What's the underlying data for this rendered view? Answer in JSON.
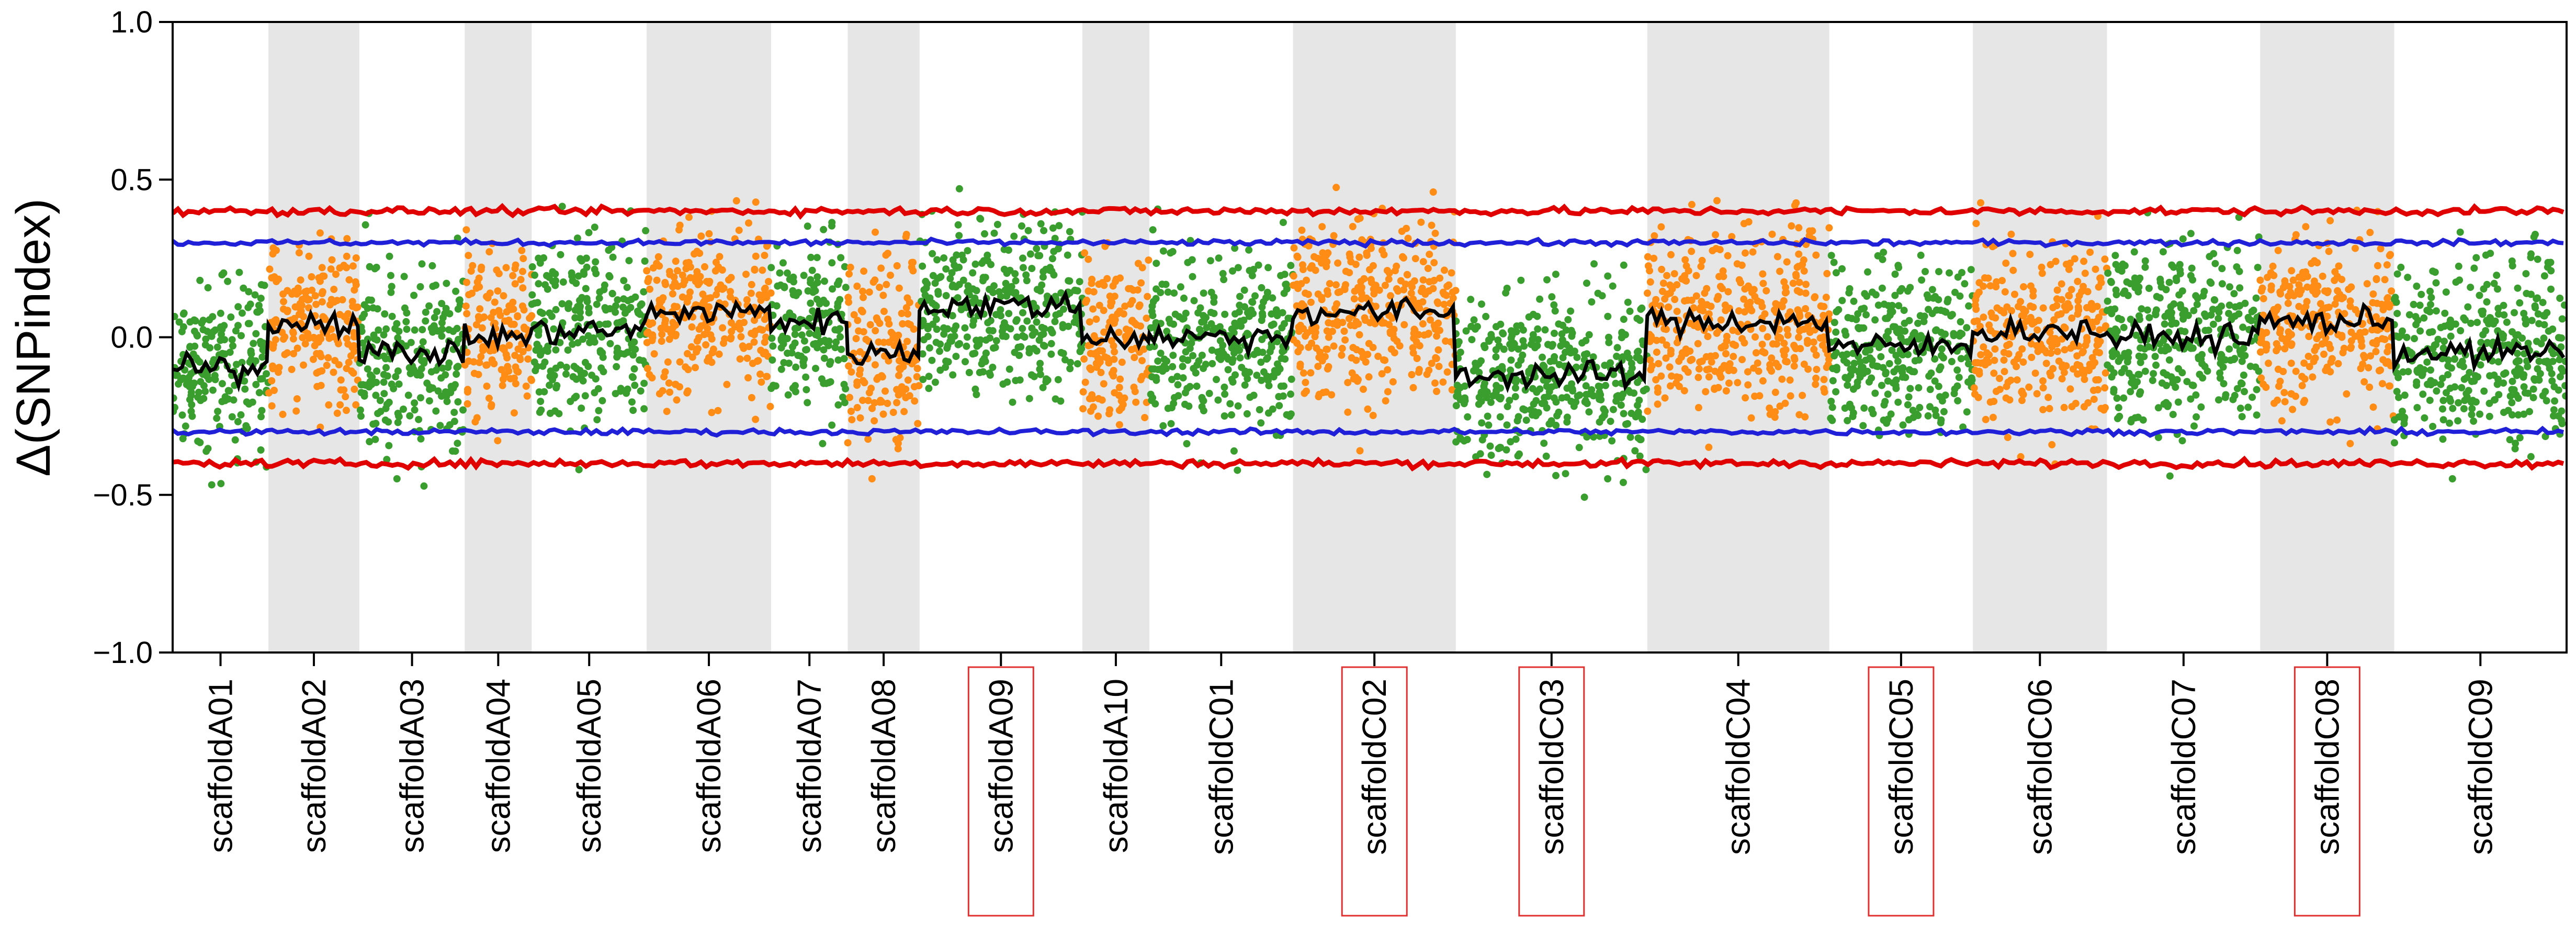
{
  "chart_data": {
    "type": "scatter",
    "title": "",
    "ylabel": "Δ(SNPindex)",
    "xlabel": "",
    "ylim": [
      -1.0,
      1.0
    ],
    "yticks": [
      {
        "value": 1.0,
        "label": "1.0"
      },
      {
        "value": 0.5,
        "label": "0.5"
      },
      {
        "value": 0.0,
        "label": "0.0"
      },
      {
        "value": -0.5,
        "label": "−0.5"
      },
      {
        "value": -1.0,
        "label": "−1.0"
      }
    ],
    "grid": false,
    "legend": "none",
    "colors": {
      "green": "#3a9e2f",
      "orange": "#ff8c14",
      "black": "#000000",
      "blue": "#2020d8",
      "red": "#e00000",
      "band": "#e6e6e6",
      "highlight_box": "#e03030"
    },
    "scaffolds": [
      {
        "name": "scaffoldA01",
        "size": 1.0,
        "dot_color": "green",
        "band": false,
        "highlight": false,
        "mean": -0.1
      },
      {
        "name": "scaffoldA02",
        "size": 0.95,
        "dot_color": "orange",
        "band": true,
        "highlight": false,
        "mean": 0.05
      },
      {
        "name": "scaffoldA03",
        "size": 1.1,
        "dot_color": "green",
        "band": false,
        "highlight": false,
        "mean": -0.05
      },
      {
        "name": "scaffoldA04",
        "size": 0.7,
        "dot_color": "orange",
        "band": true,
        "highlight": false,
        "mean": 0.0
      },
      {
        "name": "scaffoldA05",
        "size": 1.2,
        "dot_color": "green",
        "band": false,
        "highlight": false,
        "mean": 0.02
      },
      {
        "name": "scaffoldA06",
        "size": 1.3,
        "dot_color": "orange",
        "band": true,
        "highlight": false,
        "mean": 0.08
      },
      {
        "name": "scaffoldA07",
        "size": 0.8,
        "dot_color": "green",
        "band": false,
        "highlight": false,
        "mean": 0.05
      },
      {
        "name": "scaffoldA08",
        "size": 0.75,
        "dot_color": "orange",
        "band": true,
        "highlight": false,
        "mean": -0.05
      },
      {
        "name": "scaffoldA09",
        "size": 1.7,
        "dot_color": "green",
        "band": false,
        "highlight": true,
        "mean": 0.1
      },
      {
        "name": "scaffoldA10",
        "size": 0.7,
        "dot_color": "orange",
        "band": true,
        "highlight": false,
        "mean": 0.0
      },
      {
        "name": "scaffoldC01",
        "size": 1.5,
        "dot_color": "green",
        "band": false,
        "highlight": false,
        "mean": 0.0
      },
      {
        "name": "scaffoldC02",
        "size": 1.7,
        "dot_color": "orange",
        "band": true,
        "highlight": true,
        "mean": 0.08
      },
      {
        "name": "scaffoldC03",
        "size": 2.0,
        "dot_color": "green",
        "band": false,
        "highlight": true,
        "mean": -0.12
      },
      {
        "name": "scaffoldC04",
        "size": 1.9,
        "dot_color": "orange",
        "band": true,
        "highlight": false,
        "mean": 0.05
      },
      {
        "name": "scaffoldC05",
        "size": 1.5,
        "dot_color": "green",
        "band": false,
        "highlight": true,
        "mean": -0.03
      },
      {
        "name": "scaffoldC06",
        "size": 1.4,
        "dot_color": "orange",
        "band": true,
        "highlight": false,
        "mean": 0.02
      },
      {
        "name": "scaffoldC07",
        "size": 1.6,
        "dot_color": "green",
        "band": false,
        "highlight": false,
        "mean": 0.0
      },
      {
        "name": "scaffoldC08",
        "size": 1.4,
        "dot_color": "orange",
        "band": true,
        "highlight": true,
        "mean": 0.05
      },
      {
        "name": "scaffoldC09",
        "size": 1.8,
        "dot_color": "green",
        "band": false,
        "highlight": false,
        "mean": -0.05
      }
    ],
    "series": [
      {
        "kind": "points",
        "color": "per-scaffold green/orange",
        "spread": 0.3
      },
      {
        "kind": "line",
        "color": "black",
        "level": 0.0
      },
      {
        "kind": "line",
        "color": "blue",
        "level_upper": 0.3,
        "level_lower": -0.3
      },
      {
        "kind": "line",
        "color": "red",
        "level_upper": 0.4,
        "level_lower": -0.4
      }
    ]
  }
}
